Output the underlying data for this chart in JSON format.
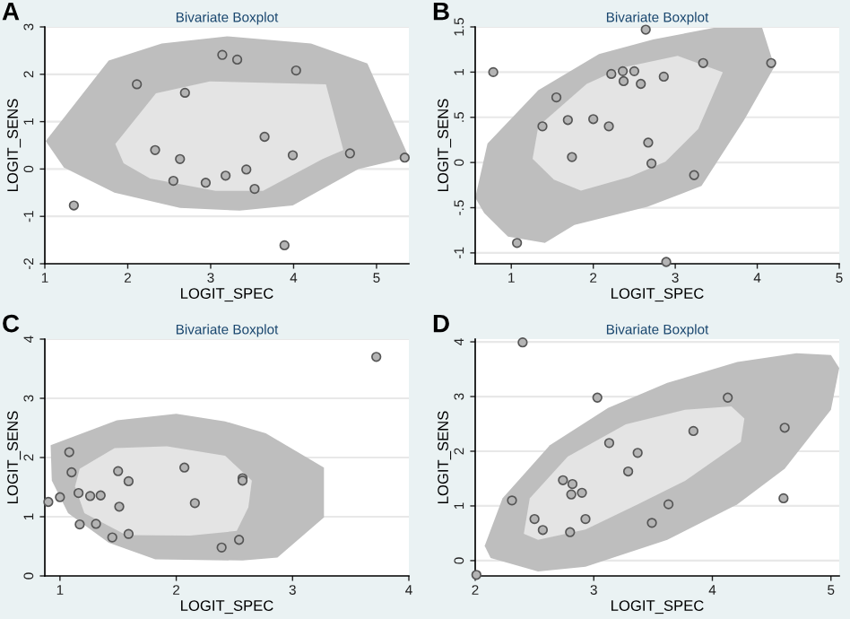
{
  "chart_data": [
    {
      "type": "scatter",
      "title": "Bivariate Boxplot",
      "xlabel": "LOGIT_SPEC",
      "ylabel": "LOGIT_SENS",
      "annotations": [
        "A"
      ],
      "xlim": [
        1,
        5.39
      ],
      "ylim": [
        -2,
        3
      ],
      "xticks": [
        1,
        2,
        3,
        4,
        5
      ],
      "yticks": [
        -2,
        -1,
        0,
        1,
        2,
        3
      ],
      "grid": "y",
      "series": [
        {
          "type": "area",
          "color": "#bebebe",
          "x": [
            1.01,
            1.77,
            2.41,
            3.2,
            4.21,
            4.89,
            5.39,
            4.78,
            3.99,
            3.35,
            2.63,
            1.84,
            1.23
          ],
          "values": [
            0.59,
            2.29,
            2.65,
            2.8,
            2.65,
            2.23,
            0.25,
            0.0,
            -0.77,
            -0.88,
            -0.82,
            -0.5,
            0.03
          ]
        },
        {
          "type": "area",
          "color": "#e4e4e4",
          "x": [
            1.85,
            2.34,
            2.99,
            4.39,
            4.6,
            4.35,
            3.63,
            3.06,
            2.27,
            1.95
          ],
          "values": [
            0.53,
            1.6,
            1.85,
            1.79,
            0.4,
            0.21,
            -0.46,
            -0.46,
            -0.2,
            0.12
          ]
        },
        {
          "marker": "circle",
          "color": "#b4b4b4",
          "x": [
            1.35,
            2.11,
            2.33,
            2.63,
            2.69,
            2.55,
            2.94,
            3.14,
            3.32,
            3.18,
            3.43,
            3.53,
            3.65,
            3.99,
            4.03,
            4.68,
            5.34,
            3.89
          ],
          "values": [
            -0.77,
            1.79,
            0.4,
            0.21,
            1.61,
            -0.25,
            -0.29,
            2.41,
            2.31,
            -0.14,
            -0.01,
            -0.42,
            0.68,
            0.29,
            2.08,
            0.33,
            0.24,
            -1.61
          ]
        }
      ]
    },
    {
      "type": "scatter",
      "title": "Bivariate Boxplot",
      "xlabel": "LOGIT_SPEC",
      "ylabel": "LOGIT_SENS",
      "annotations": [
        "B"
      ],
      "xlim": [
        0.56,
        5
      ],
      "ylim": [
        -1.12,
        1.5
      ],
      "xticks": [
        1,
        2,
        3,
        4,
        5
      ],
      "yticks": [
        -1,
        {
          "value": -0.5,
          "label": "-.5"
        },
        0,
        {
          "value": 0.5,
          "label": ".5"
        },
        1,
        1.5
      ],
      "grid": "y",
      "series": [
        {
          "type": "area",
          "color": "#bebebe",
          "x": [
            0.56,
            0.71,
            1.33,
            2.07,
            2.73,
            3.47,
            4.06,
            4.21,
            3.84,
            3.32,
            2.66,
            1.77,
            1.41,
            0.96,
            0.67
          ],
          "values": [
            -0.39,
            0.21,
            0.8,
            1.2,
            1.36,
            1.49,
            1.49,
            1.06,
            0.47,
            -0.26,
            -0.49,
            -0.69,
            -0.89,
            -0.82,
            -0.56
          ]
        },
        {
          "type": "area",
          "color": "#e4e4e4",
          "x": [
            1.26,
            1.33,
            1.92,
            2.36,
            3.03,
            3.58,
            3.28,
            2.88,
            2.44,
            1.85,
            1.52
          ],
          "values": [
            0.04,
            0.4,
            0.87,
            1.05,
            1.18,
            1.0,
            0.37,
            0.01,
            -0.16,
            -0.31,
            -0.19
          ]
        },
        {
          "marker": "circle",
          "color": "#b4b4b4",
          "x": [
            0.78,
            1.07,
            1.38,
            1.55,
            1.69,
            1.74,
            2.0,
            2.19,
            2.22,
            2.36,
            2.37,
            2.5,
            2.58,
            2.64,
            2.67,
            2.71,
            2.86,
            2.89,
            3.23,
            3.34,
            4.17
          ],
          "values": [
            1.0,
            -0.89,
            0.4,
            0.72,
            0.47,
            0.06,
            0.48,
            0.4,
            0.98,
            1.01,
            0.9,
            1.01,
            0.87,
            1.47,
            0.22,
            -0.01,
            0.95,
            -1.1,
            -0.14,
            1.1,
            1.1
          ]
        }
      ]
    },
    {
      "type": "scatter",
      "title": "Bivariate Boxplot",
      "xlabel": "LOGIT_SPEC",
      "ylabel": "LOGIT_SENS",
      "annotations": [
        "C"
      ],
      "xlim": [
        0.87,
        4
      ],
      "ylim": [
        0,
        4
      ],
      "xticks": [
        1,
        2,
        3,
        4
      ],
      "yticks": [
        0,
        1,
        2,
        3,
        4
      ],
      "grid": "y",
      "series": [
        {
          "type": "area",
          "color": "#bebebe",
          "x": [
            0.92,
            1.49,
            2.0,
            2.42,
            2.77,
            3.27,
            3.27,
            2.87,
            2.57,
            1.82,
            1.42,
            1.07,
            0.93
          ],
          "values": [
            2.21,
            2.63,
            2.74,
            2.61,
            2.41,
            1.83,
            0.99,
            0.31,
            0.26,
            0.28,
            0.56,
            1.06,
            1.61
          ]
        },
        {
          "type": "area",
          "color": "#e4e4e4",
          "x": [
            1.17,
            1.47,
            1.92,
            2.42,
            2.65,
            2.62,
            2.52,
            2.12,
            1.57,
            1.21,
            1.13
          ],
          "values": [
            1.81,
            2.16,
            2.19,
            2.03,
            1.61,
            1.16,
            0.76,
            0.68,
            0.69,
            1.06,
            1.51
          ]
        },
        {
          "marker": "circle",
          "color": "#b4b4b4",
          "x": [
            0.9,
            1.0,
            1.08,
            1.1,
            1.16,
            1.17,
            1.26,
            1.31,
            1.35,
            1.45,
            1.5,
            1.51,
            1.59,
            1.59,
            2.07,
            2.16,
            2.57,
            2.57,
            2.39,
            2.54,
            3.72
          ],
          "values": [
            1.25,
            1.33,
            2.09,
            1.75,
            1.4,
            0.87,
            1.35,
            0.88,
            1.36,
            0.65,
            1.77,
            1.17,
            1.6,
            0.71,
            1.83,
            1.23,
            1.65,
            1.61,
            0.48,
            0.61,
            3.7
          ]
        }
      ]
    },
    {
      "type": "scatter",
      "title": "Bivariate Boxplot",
      "xlabel": "LOGIT_SPEC",
      "ylabel": "LOGIT_SENS",
      "annotations": [
        "D"
      ],
      "xlim": [
        2,
        5.07
      ],
      "ylim": [
        -0.28,
        4.05
      ],
      "xticks": [
        2,
        3,
        4,
        5
      ],
      "yticks": [
        0,
        1,
        2,
        3,
        4
      ],
      "grid": "y",
      "series": [
        {
          "type": "area",
          "color": "#bebebe",
          "x": [
            2.08,
            2.23,
            2.63,
            3.12,
            3.62,
            4.21,
            4.71,
            5.0,
            5.07,
            5.0,
            4.61,
            4.21,
            3.62,
            2.93,
            2.53,
            2.13
          ],
          "values": [
            0.27,
            1.14,
            2.11,
            2.79,
            3.25,
            3.63,
            3.79,
            3.76,
            3.52,
            2.76,
            1.68,
            1.03,
            0.38,
            -0.11,
            -0.2,
            0.05
          ]
        },
        {
          "type": "area",
          "color": "#e4e4e4",
          "x": [
            2.41,
            2.46,
            2.78,
            3.27,
            3.77,
            4.16,
            4.27,
            4.24,
            3.77,
            3.37,
            2.93,
            2.53
          ],
          "values": [
            0.49,
            1.14,
            1.9,
            2.49,
            2.76,
            2.82,
            2.6,
            2.17,
            1.46,
            1.03,
            0.57,
            0.38
          ]
        },
        {
          "marker": "circle",
          "color": "#b4b4b4",
          "x": [
            2.01,
            2.31,
            2.4,
            2.5,
            2.57,
            2.74,
            2.82,
            2.81,
            2.9,
            2.8,
            2.93,
            3.03,
            3.13,
            3.29,
            3.37,
            3.49,
            3.63,
            3.84,
            4.13,
            4.6,
            4.61
          ],
          "values": [
            -0.26,
            1.1,
            3.99,
            0.76,
            0.56,
            1.47,
            1.4,
            1.21,
            1.24,
            0.52,
            0.76,
            2.98,
            2.15,
            1.63,
            1.97,
            0.69,
            1.03,
            2.37,
            2.98,
            1.14,
            2.43
          ]
        }
      ]
    }
  ]
}
